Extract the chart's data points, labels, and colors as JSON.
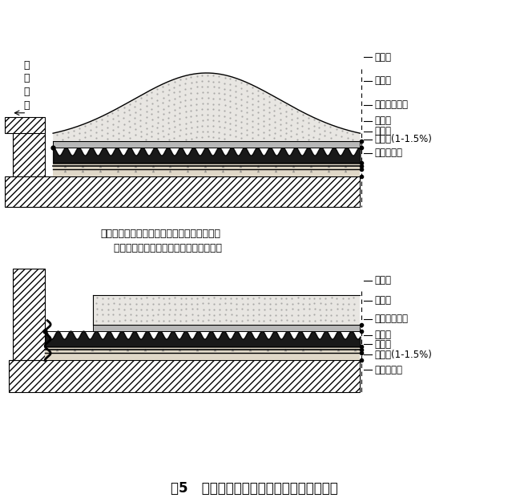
{
  "title": "图5   屋顶绿化排（蓄）水板铺设方法示意图",
  "title_fontsize": 12,
  "bg_color": "#ffffff",
  "labels_top": [
    "基质层",
    "过滤层",
    "排（蓄）水层",
    "隔根层",
    "防水层",
    "找坡层(1-1.5%)",
    "屋顶结构层"
  ],
  "labels_bottom": [
    "基质层",
    "过滤层",
    "排（蓄）水层",
    "隔根层",
    "防水层",
    "找坡层(1-1.5%)",
    "屋顶结构层"
  ],
  "note_line1": "注：挡土墙可砌筑在排（蓄）水板上方，多余",
  "note_line2": "    水分可通过排（蓄）水板排至四周明沟。",
  "label_paishui": [
    "排",
    "水",
    "明",
    "沟"
  ]
}
